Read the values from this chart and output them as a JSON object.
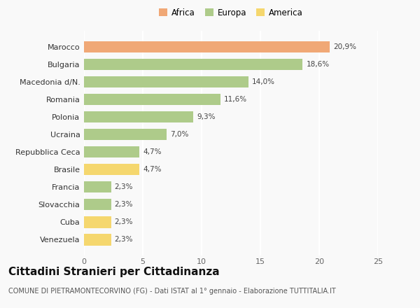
{
  "categories": [
    "Venezuela",
    "Cuba",
    "Slovacchia",
    "Francia",
    "Brasile",
    "Repubblica Ceca",
    "Ucraina",
    "Polonia",
    "Romania",
    "Macedonia d/N.",
    "Bulgaria",
    "Marocco"
  ],
  "values": [
    2.3,
    2.3,
    2.3,
    2.3,
    4.7,
    4.7,
    7.0,
    9.3,
    11.6,
    14.0,
    18.6,
    20.9
  ],
  "colors": [
    "#F5D76E",
    "#F5D76E",
    "#AECB8A",
    "#AECB8A",
    "#F5D76E",
    "#AECB8A",
    "#AECB8A",
    "#AECB8A",
    "#AECB8A",
    "#AECB8A",
    "#AECB8A",
    "#F0A876"
  ],
  "legend": [
    {
      "label": "Africa",
      "color": "#F0A876"
    },
    {
      "label": "Europa",
      "color": "#AECB8A"
    },
    {
      "label": "America",
      "color": "#F5D76E"
    }
  ],
  "xlim": [
    0,
    25
  ],
  "xticks": [
    0,
    5,
    10,
    15,
    20,
    25
  ],
  "title": "Cittadini Stranieri per Cittadinanza",
  "subtitle": "COMUNE DI PIETRAMONTECORVINO (FG) - Dati ISTAT al 1° gennaio - Elaborazione TUTTITALIA.IT",
  "background_color": "#f9f9f9",
  "bar_label_fontsize": 7.5,
  "ytick_fontsize": 8,
  "xtick_fontsize": 8,
  "title_fontsize": 11,
  "subtitle_fontsize": 7
}
